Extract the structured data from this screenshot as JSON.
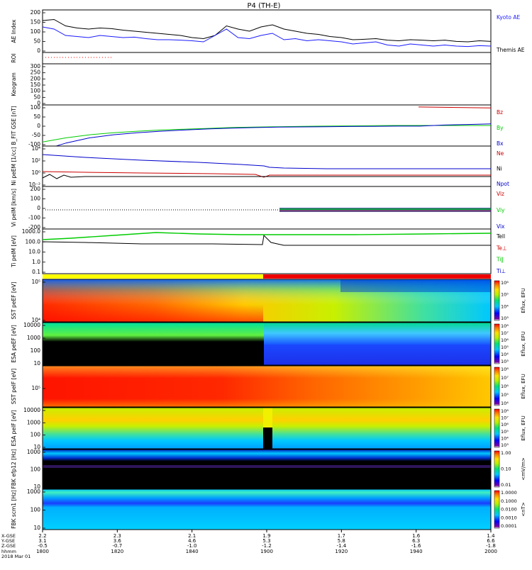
{
  "title": "P4 (TH-E)",
  "chart_data": {
    "type": "multi-panel time series / spectrogram",
    "title": "P4 (TH-E)",
    "x_ticks": [
      "1800",
      "1820",
      "1840",
      "1900",
      "1920",
      "1940",
      "2000"
    ],
    "x_axis_rows": {
      "labels": [
        "X-GSE",
        "Y-GSE",
        "Z-GSE",
        "hhmm",
        "2018 Mar 01"
      ],
      "values": [
        [
          "2.2",
          "2.3",
          "2.1",
          "1.9",
          "1.7",
          "1.6",
          "1.4"
        ],
        [
          "3.1",
          "3.6",
          "4.6",
          "5.3",
          "5.8",
          "6.3",
          "6.6"
        ],
        [
          "-0.5",
          "-0.7",
          "-1.0",
          "-1.2",
          "-1.4",
          "-1.6",
          "-1.8"
        ]
      ]
    },
    "panels": [
      {
        "id": "ae",
        "label": "AE Index",
        "ylim": [
          0,
          200
        ],
        "yticks": [
          "200",
          "150",
          "100",
          "50",
          "0"
        ],
        "series": [
          {
            "name": "Kyoto AE",
            "color": "#1a1aff"
          },
          {
            "name": "Themis AE",
            "color": "#000000"
          }
        ],
        "kyoto": [
          120,
          110,
          80,
          75,
          70,
          80,
          75,
          70,
          72,
          65,
          60,
          60,
          58,
          55,
          50,
          80,
          110,
          70,
          65,
          80,
          90,
          60,
          65,
          55,
          60,
          55,
          50,
          40,
          45,
          50,
          35,
          30,
          40,
          35,
          30,
          35,
          30,
          28,
          32,
          30
        ],
        "themis": [
          150,
          155,
          125,
          115,
          110,
          115,
          112,
          105,
          100,
          95,
          90,
          85,
          80,
          70,
          65,
          80,
          125,
          110,
          100,
          120,
          130,
          110,
          100,
          90,
          85,
          75,
          70,
          60,
          62,
          65,
          58,
          55,
          60,
          58,
          55,
          58,
          52,
          50,
          55,
          52
        ]
      },
      {
        "id": "roi",
        "label": "ROI"
      },
      {
        "id": "keogram",
        "label": "Keogram",
        "yticks": [
          "300",
          "250",
          "200",
          "150",
          "100",
          "50",
          "0"
        ]
      },
      {
        "id": "bfit",
        "label": "B_FIT GSE [nT]",
        "ylim": [
          -100,
          100
        ],
        "yticks": [
          "100",
          "50",
          "0",
          "-50",
          "-100"
        ],
        "series": [
          {
            "name": "Bz",
            "color": "#cc0000"
          },
          {
            "name": "By",
            "color": "#00cc00"
          },
          {
            "name": "Bx",
            "color": "#0000cc"
          }
        ],
        "bz": [
          90,
          85
        ],
        "by": [
          -80,
          -60,
          -45,
          -35,
          -28,
          -22,
          -18,
          -14,
          -10,
          -8,
          -6,
          -4,
          -3,
          -2,
          -1,
          0,
          0,
          0,
          0,
          0
        ],
        "bx": [
          -120,
          -85,
          -60,
          -45,
          -35,
          -28,
          -22,
          -17,
          -13,
          -10,
          -8,
          -7,
          -6,
          -5,
          -4,
          -3,
          -3,
          2,
          5,
          8
        ]
      },
      {
        "id": "ni",
        "label": "Ni peEM [1/cc]",
        "yticks": [
          "10⁴",
          "10²",
          "10⁰",
          "10⁻²"
        ],
        "series": [
          {
            "name": "Ne",
            "color": "#cc0000"
          },
          {
            "name": "Ni",
            "color": "#000000"
          },
          {
            "name": "Npot",
            "color": "#0000cc"
          }
        ]
      },
      {
        "id": "vi",
        "label": "Vi peIM [km/s]",
        "ylim": [
          -200,
          200
        ],
        "yticks": [
          "200",
          "100",
          "0",
          "-100",
          "-200"
        ],
        "series": [
          {
            "name": "Viz",
            "color": "#cc0000"
          },
          {
            "name": "Viy",
            "color": "#00cc00"
          },
          {
            "name": "Vix",
            "color": "#0000cc"
          }
        ]
      },
      {
        "id": "ti",
        "label": "Ti peIM [eV]",
        "yticks": [
          "1000.0",
          "100.0",
          "10.0",
          "1.0",
          "0.1"
        ],
        "series": [
          {
            "name": "Tell",
            "color": "#000000"
          },
          {
            "name": "Te⊥",
            "color": "#cc0000"
          },
          {
            "name": "Ti‖",
            "color": "#00cc00"
          },
          {
            "name": "Ti⊥",
            "color": "#0000cc"
          }
        ]
      },
      {
        "id": "sst_e",
        "label": "SST peEF [eV]",
        "yticks": [
          "10⁵",
          "10⁴"
        ]
      },
      {
        "id": "esa_e",
        "label": "ESA peEF [eV]",
        "yticks": [
          "10000",
          "1000",
          "100",
          "10"
        ]
      },
      {
        "id": "sst_i",
        "label": "SST peIF [eV]",
        "yticks": [
          "10⁵"
        ]
      },
      {
        "id": "esa_i",
        "label": "ESA peIF [eV]",
        "yticks": [
          "10000",
          "1000",
          "100",
          "10"
        ]
      },
      {
        "id": "fbk1",
        "label": "FBK efp12 [Hz]",
        "yticks": [
          "1000",
          "100",
          "10"
        ]
      },
      {
        "id": "fbk2",
        "label": "FBK scm1 [Hz]",
        "yticks": [
          "1000",
          "100",
          "10"
        ]
      }
    ],
    "colorbars": [
      {
        "label": "Eflux, EFU",
        "ticks": [
          "10⁶",
          "10⁵",
          "10⁴",
          "10³"
        ]
      },
      {
        "label": "Eflux, EFU",
        "ticks": [
          "10⁸",
          "10⁷",
          "10⁶",
          "10⁵",
          "10⁴",
          "10³"
        ]
      },
      {
        "label": "Eflux, EFU",
        "ticks": [
          "10⁸",
          "10⁷",
          "10⁶",
          "10⁵",
          "10⁴"
        ]
      },
      {
        "label": "Eflux, EFU",
        "ticks": [
          "10⁸",
          "10⁷",
          "10⁶",
          "10⁵",
          "10⁴",
          "10³"
        ]
      },
      {
        "label": "<mV/m>",
        "ticks": [
          "1.00",
          "0.10",
          "0.01"
        ]
      },
      {
        "label": "<nT>",
        "ticks": [
          "1.0000",
          "0.1000",
          "0.0100",
          "0.0010",
          "0.0001"
        ]
      }
    ]
  }
}
